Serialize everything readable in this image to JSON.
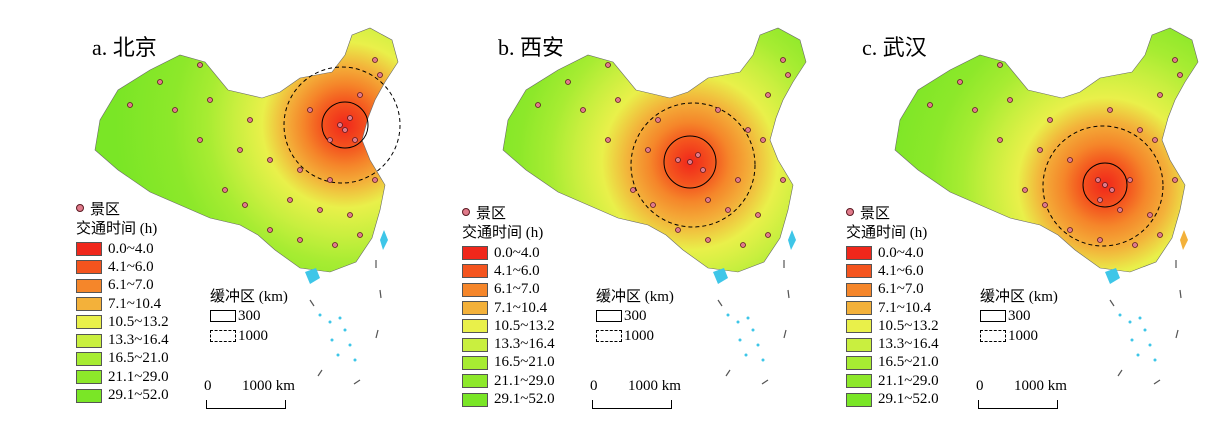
{
  "panels": [
    {
      "title": "a. 北京",
      "buffer_units": "缓冲区 (km)"
    },
    {
      "title": "b. 西安",
      "buffer_units": "缓冲区 (km)"
    },
    {
      "title": "c. 武汉",
      "buffer_units": "缓冲区 (km)"
    }
  ],
  "legend": {
    "points_label": "景区",
    "heading": "交通时间 (h)",
    "classes": [
      {
        "label": "0.0~4.0",
        "color": "#f0271b"
      },
      {
        "label": "4.1~6.0",
        "color": "#f4541e"
      },
      {
        "label": "6.1~7.0",
        "color": "#f5862a"
      },
      {
        "label": "7.1~10.4",
        "color": "#f3b13a"
      },
      {
        "label": "10.5~13.2",
        "color": "#e9f04a"
      },
      {
        "label": "13.3~16.4",
        "color": "#c9ef3f"
      },
      {
        "label": "16.5~21.0",
        "color": "#a7ec32"
      },
      {
        "label": "21.1~29.0",
        "color": "#8de82a"
      },
      {
        "label": "29.1~52.0",
        "color": "#7ae626"
      }
    ]
  },
  "buffers": {
    "inner": "300",
    "outer": "1000"
  },
  "scale_bar": {
    "start": "0",
    "end": "1000 km"
  },
  "colors": {
    "water": "#3ec6e8",
    "point_fill": "#e07a8a",
    "point_stroke": "#5a1a22"
  }
}
